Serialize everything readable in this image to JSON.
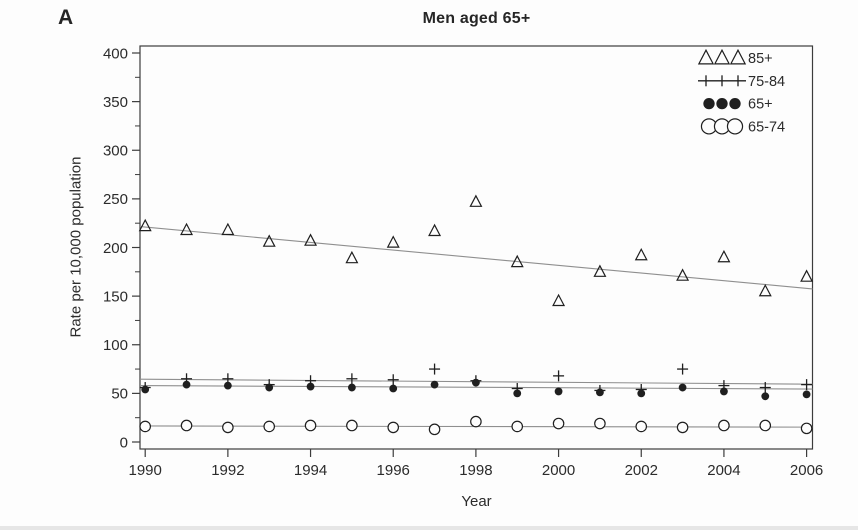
{
  "panel_label": "A",
  "title": "Men aged 65+",
  "chart_data": {
    "type": "scatter",
    "title": "Men aged 65+",
    "xlabel": "Year",
    "ylabel": "Rate per 10,000 population",
    "xlim": [
      1990,
      2006
    ],
    "ylim": [
      0,
      400
    ],
    "yticks": [
      0,
      50,
      100,
      150,
      200,
      250,
      300,
      350,
      400
    ],
    "y_minor_ticks": [
      25,
      75,
      125,
      175,
      225,
      275,
      325,
      375
    ],
    "xticks": [
      1990,
      1992,
      1994,
      1996,
      1998,
      2000,
      2002,
      2004,
      2006
    ],
    "grid": false,
    "legend_position": "top-right",
    "marker_color": "#1f1f1f",
    "trend_line_color": "#8f8f8f",
    "axis_color": "#3c3c3c",
    "x": [
      1990,
      1991,
      1992,
      1993,
      1994,
      1995,
      1996,
      1997,
      1998,
      1999,
      2000,
      2001,
      2002,
      2003,
      2004,
      2005,
      2006
    ],
    "series": [
      {
        "name": "85+",
        "marker": "open-triangle",
        "values": [
          222,
          218,
          218,
          206,
          207,
          189,
          205,
          217,
          247,
          185,
          145,
          175,
          192,
          171,
          190,
          155,
          170
        ],
        "trend": {
          "start": 221,
          "end": 158
        }
      },
      {
        "name": "75-84",
        "marker": "plus",
        "values": [
          56,
          65,
          65,
          59,
          63,
          65,
          64,
          75,
          63,
          55,
          68,
          53,
          54,
          75,
          58,
          56,
          59
        ],
        "trend": {
          "start": 64.5,
          "end": 59.5
        }
      },
      {
        "name": "65+",
        "marker": "filled-circle",
        "values": [
          54,
          59,
          58,
          56,
          57,
          56,
          55,
          59,
          61,
          50,
          52,
          51,
          50,
          56,
          52,
          47,
          49
        ],
        "trend": {
          "start": 58,
          "end": 54.5
        }
      },
      {
        "name": "65-74",
        "marker": "open-circle",
        "values": [
          16,
          17,
          15,
          16,
          17,
          17,
          15,
          13,
          21,
          16,
          19,
          19,
          16,
          15,
          17,
          17,
          14
        ],
        "trend": {
          "start": 16.5,
          "end": 15.3
        }
      }
    ]
  }
}
